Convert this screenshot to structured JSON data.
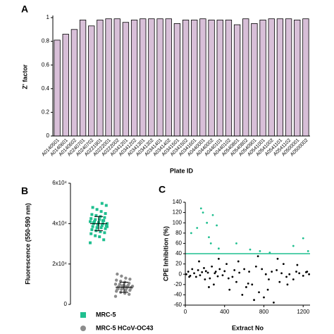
{
  "chart_data": [
    {
      "type": "bar",
      "panel": "A",
      "ylabel": "Z' factor",
      "xlabel": "Plate ID",
      "color": "#d8bfd8",
      "edge": "#000000",
      "categories": [
        "A0140501",
        "A0140601",
        "A0140602",
        "A0240701",
        "A0240702",
        "A0221901",
        "A0222001",
        "A0222002",
        "A0341201",
        "A0341202",
        "A0341301",
        "A0341302",
        "A0341401",
        "A0341402",
        "A0341501",
        "A0341502",
        "A0341601",
        "A0440001",
        "A0440002",
        "A0440101",
        "A0440102",
        "A0540801",
        "A0540802",
        "A0540901",
        "A0541001",
        "A0541002",
        "A0541101",
        "A0541102",
        "A0500001",
        "A0500002"
      ],
      "values": [
        0.81,
        0.86,
        0.9,
        0.98,
        0.93,
        0.98,
        0.99,
        0.99,
        0.96,
        0.98,
        0.99,
        0.99,
        0.99,
        0.99,
        0.95,
        0.98,
        0.98,
        0.99,
        0.98,
        0.98,
        0.98,
        0.94,
        0.99,
        0.95,
        0.98,
        0.99,
        0.99,
        0.99,
        0.98,
        0.99
      ],
      "ylim": [
        0,
        1
      ],
      "yticks": [
        0,
        0.2,
        0.4,
        0.6,
        0.8,
        1
      ]
    },
    {
      "type": "dot",
      "panel": "B",
      "ylabel": "Fluorescence (550-590 nm)",
      "ylim": [
        0,
        60000
      ],
      "yticks": [
        0,
        {
          "value": 20000,
          "label": "2x10⁴"
        },
        {
          "value": 40000,
          "label": "4x10⁴"
        },
        {
          "value": 60000,
          "label": "6x10⁴"
        }
      ],
      "series": [
        {
          "name": "MRC-5",
          "color": "#1fbf8f",
          "marker": "square",
          "mean": 40000,
          "sd": 3500,
          "values": [
            30500,
            32000,
            33500,
            34000,
            35000,
            35500,
            36000,
            36500,
            37000,
            37500,
            38000,
            38000,
            38500,
            39000,
            39000,
            39500,
            40000,
            40000,
            40000,
            40500,
            41000,
            41000,
            41500,
            42000,
            42000,
            42500,
            43000,
            43500,
            44000,
            44500,
            45000,
            46000,
            47000,
            48000,
            49000,
            50000,
            39500,
            40500,
            38500,
            41500
          ]
        },
        {
          "name": "MRC-5 HCoV-OC43",
          "color": "#8c8c8c",
          "marker": "circle",
          "mean": 8500,
          "sd": 2500,
          "values": [
            4000,
            5000,
            5500,
            6000,
            6500,
            7000,
            7000,
            7500,
            7500,
            8000,
            8000,
            8000,
            8500,
            8500,
            8500,
            9000,
            9000,
            9000,
            9500,
            9500,
            10000,
            10000,
            10500,
            11000,
            11500,
            12000,
            12500,
            13000,
            14000,
            15000,
            8200,
            8800,
            9200,
            7800
          ]
        }
      ]
    },
    {
      "type": "scatter",
      "panel": "C",
      "ylabel": "CPE Inhibition (%)",
      "xlabel": "Extract No",
      "xlim": [
        0,
        1270
      ],
      "xticks": [
        0,
        400,
        800,
        1200
      ],
      "ylim": [
        -60,
        140
      ],
      "yticks": [
        -60,
        -40,
        -20,
        0,
        20,
        40,
        60,
        80,
        100,
        120,
        140
      ],
      "threshold": 40,
      "threshold_color": "#1fbf8f",
      "hit_color": "#1fbf8f",
      "color": "#000000",
      "series": [
        {
          "x": [
            10,
            30,
            50,
            70,
            90,
            110,
            130,
            150,
            170,
            190,
            200,
            210,
            230,
            250,
            270,
            290,
            300,
            310,
            330,
            350,
            380,
            400,
            420,
            450,
            480,
            500,
            520,
            550,
            580,
            600,
            620,
            650,
            680,
            700,
            720,
            750,
            780,
            800,
            820,
            850,
            880,
            900,
            930,
            960,
            980,
            1000,
            1030,
            1060,
            1100,
            1130,
            1160,
            1200,
            1230,
            1260,
            60,
            120,
            160,
            180,
            220,
            240,
            260,
            280,
            320,
            340,
            520,
            660,
            760,
            860,
            1100,
            1200,
            1250,
            40,
            140,
            240,
            340,
            440,
            540,
            640,
            740,
            840,
            940,
            1040,
            1140,
            1240
          ],
          "y": [
            0,
            5,
            -3,
            10,
            2,
            -5,
            8,
            -2,
            4,
            12,
            -10,
            6,
            3,
            -8,
            15,
            -20,
            2,
            5,
            -4,
            10,
            -2,
            6,
            20,
            -30,
            -5,
            8,
            -15,
            3,
            -40,
            10,
            -25,
            5,
            -20,
            -50,
            15,
            -35,
            10,
            -45,
            0,
            -10,
            5,
            -55,
            8,
            -15,
            2,
            20,
            -5,
            0,
            -10,
            5,
            2,
            -3,
            4,
            0,
            80,
            90,
            128,
            120,
            100,
            72,
            60,
            115,
            95,
            50,
            60,
            48,
            45,
            42,
            55,
            70,
            45,
            -5,
            25,
            -25,
            30,
            -8,
            25,
            -18,
            35,
            -30,
            30,
            -20,
            18,
            5
          ]
        }
      ]
    }
  ]
}
